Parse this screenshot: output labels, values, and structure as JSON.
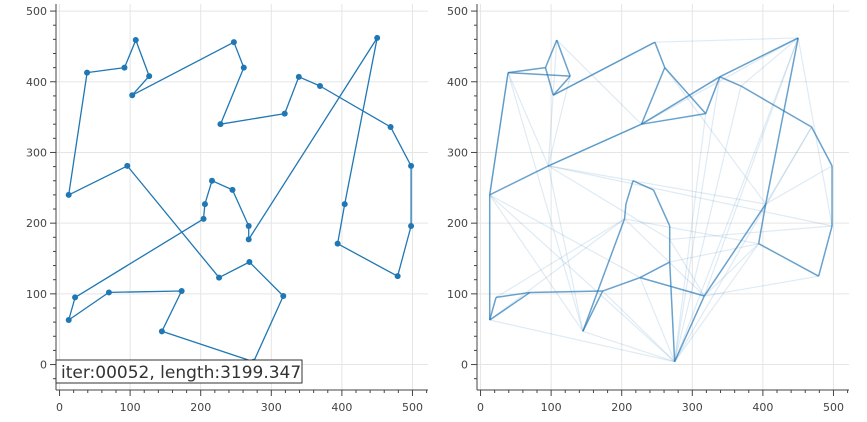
{
  "status": {
    "text": "iter:00052, length:3199.347"
  },
  "colors": {
    "route": "#1f77b4",
    "edge": "#2a7ab8",
    "grid": "#e5e5e5",
    "axis": "#444444"
  },
  "chart_data": [
    {
      "type": "line",
      "panel": "left",
      "title": "",
      "xlabel": "",
      "ylabel": "",
      "xlim": [
        -5,
        522
      ],
      "ylim": [
        -36,
        510
      ],
      "xticks": [
        0,
        100,
        200,
        300,
        400,
        500
      ],
      "yticks": [
        0,
        100,
        200,
        300,
        400,
        500
      ],
      "xtick_labels": [
        "0",
        "100",
        "200",
        "300",
        "400",
        "500"
      ],
      "ytick_labels": [
        "0",
        "100",
        "200",
        "300",
        "400",
        "500"
      ],
      "grid": true,
      "markers": true,
      "route": [
        [
          13,
          240
        ],
        [
          39,
          413
        ],
        [
          92,
          420
        ],
        [
          108,
          459
        ],
        [
          127,
          408
        ],
        [
          103,
          381
        ],
        [
          247,
          456
        ],
        [
          261,
          420
        ],
        [
          228,
          340
        ],
        [
          319,
          355
        ],
        [
          339,
          407
        ],
        [
          369,
          394
        ],
        [
          469,
          336
        ],
        [
          498,
          281
        ],
        [
          498,
          196
        ],
        [
          479,
          125
        ],
        [
          394,
          171
        ],
        [
          404,
          227
        ],
        [
          450,
          462
        ],
        [
          268,
          177
        ],
        [
          268,
          196
        ],
        [
          245,
          247
        ],
        [
          216,
          260
        ],
        [
          206,
          227
        ],
        [
          204,
          206
        ],
        [
          22,
          95
        ],
        [
          13,
          63
        ],
        [
          70,
          102
        ],
        [
          173,
          104
        ],
        [
          145,
          47
        ],
        [
          275,
          4
        ],
        [
          317,
          97
        ],
        [
          269,
          145
        ],
        [
          226,
          123
        ],
        [
          96,
          281
        ],
        [
          13,
          240
        ]
      ]
    },
    {
      "type": "scatter",
      "panel": "right",
      "title": "",
      "xlabel": "",
      "ylabel": "",
      "xlim": [
        -5,
        522
      ],
      "ylim": [
        -36,
        510
      ],
      "xticks": [
        0,
        100,
        200,
        300,
        400,
        500
      ],
      "yticks": [
        0,
        100,
        200,
        300,
        400,
        500
      ],
      "xtick_labels": [
        "0",
        "100",
        "200",
        "300",
        "400",
        "500"
      ],
      "ytick_labels": [
        "0",
        "100",
        "200",
        "300",
        "400",
        "500"
      ],
      "grid": true,
      "strong_edges": [
        [
          [
            108,
            459
          ],
          [
            127,
            408
          ]
        ],
        [
          [
            108,
            459
          ],
          [
            92,
            420
          ]
        ],
        [
          [
            92,
            420
          ],
          [
            39,
            413
          ]
        ],
        [
          [
            39,
            413
          ],
          [
            127,
            408
          ]
        ],
        [
          [
            92,
            420
          ],
          [
            103,
            381
          ]
        ],
        [
          [
            103,
            381
          ],
          [
            127,
            408
          ]
        ],
        [
          [
            13,
            240
          ],
          [
            13,
            63
          ]
        ],
        [
          [
            13,
            63
          ],
          [
            22,
            95
          ]
        ],
        [
          [
            22,
            95
          ],
          [
            70,
            102
          ]
        ],
        [
          [
            70,
            102
          ],
          [
            13,
            63
          ]
        ],
        [
          [
            13,
            240
          ],
          [
            96,
            281
          ]
        ],
        [
          [
            96,
            281
          ],
          [
            228,
            340
          ]
        ],
        [
          [
            228,
            340
          ],
          [
            339,
            407
          ]
        ],
        [
          [
            339,
            407
          ],
          [
            369,
            394
          ]
        ],
        [
          [
            369,
            394
          ],
          [
            469,
            336
          ]
        ],
        [
          [
            469,
            336
          ],
          [
            498,
            281
          ]
        ],
        [
          [
            498,
            281
          ],
          [
            498,
            196
          ]
        ],
        [
          [
            498,
            196
          ],
          [
            479,
            125
          ]
        ],
        [
          [
            479,
            125
          ],
          [
            394,
            171
          ]
        ],
        [
          [
            394,
            171
          ],
          [
            404,
            227
          ]
        ],
        [
          [
            404,
            227
          ],
          [
            450,
            462
          ]
        ],
        [
          [
            450,
            462
          ],
          [
            339,
            407
          ]
        ],
        [
          [
            319,
            355
          ],
          [
            339,
            407
          ]
        ],
        [
          [
            228,
            340
          ],
          [
            319,
            355
          ]
        ],
        [
          [
            247,
            456
          ],
          [
            261,
            420
          ]
        ],
        [
          [
            261,
            420
          ],
          [
            228,
            340
          ]
        ],
        [
          [
            261,
            420
          ],
          [
            319,
            355
          ]
        ],
        [
          [
            216,
            260
          ],
          [
            245,
            247
          ]
        ],
        [
          [
            245,
            247
          ],
          [
            268,
            196
          ]
        ],
        [
          [
            268,
            196
          ],
          [
            268,
            177
          ]
        ],
        [
          [
            268,
            177
          ],
          [
            268,
            145
          ]
        ],
        [
          [
            268,
            145
          ],
          [
            226,
            123
          ]
        ],
        [
          [
            216,
            260
          ],
          [
            206,
            227
          ]
        ],
        [
          [
            206,
            227
          ],
          [
            204,
            206
          ]
        ],
        [
          [
            226,
            123
          ],
          [
            173,
            104
          ]
        ],
        [
          [
            173,
            104
          ],
          [
            145,
            47
          ]
        ],
        [
          [
            145,
            47
          ],
          [
            204,
            206
          ]
        ],
        [
          [
            70,
            102
          ],
          [
            173,
            104
          ]
        ],
        [
          [
            226,
            123
          ],
          [
            317,
            97
          ]
        ],
        [
          [
            317,
            97
          ],
          [
            404,
            227
          ]
        ],
        [
          [
            317,
            97
          ],
          [
            275,
            4
          ]
        ],
        [
          [
            275,
            4
          ],
          [
            268,
            145
          ]
        ],
        [
          [
            13,
            240
          ],
          [
            39,
            413
          ]
        ],
        [
          [
            103,
            381
          ],
          [
            247,
            456
          ]
        ]
      ],
      "faint_edges": [
        [
          [
            39,
            413
          ],
          [
            13,
            240
          ]
        ],
        [
          [
            39,
            413
          ],
          [
            96,
            281
          ]
        ],
        [
          [
            108,
            459
          ],
          [
            96,
            281
          ]
        ],
        [
          [
            247,
            456
          ],
          [
            450,
            462
          ]
        ],
        [
          [
            247,
            456
          ],
          [
            103,
            381
          ]
        ],
        [
          [
            450,
            462
          ],
          [
            498,
            196
          ]
        ],
        [
          [
            450,
            462
          ],
          [
            275,
            4
          ]
        ],
        [
          [
            450,
            462
          ],
          [
            317,
            97
          ]
        ],
        [
          [
            450,
            462
          ],
          [
            369,
            394
          ]
        ],
        [
          [
            450,
            462
          ],
          [
            228,
            340
          ]
        ],
        [
          [
            369,
            394
          ],
          [
            275,
            4
          ]
        ],
        [
          [
            469,
            336
          ],
          [
            275,
            4
          ]
        ],
        [
          [
            498,
            281
          ],
          [
            404,
            227
          ]
        ],
        [
          [
            96,
            281
          ],
          [
            498,
            196
          ]
        ],
        [
          [
            96,
            281
          ],
          [
            404,
            227
          ]
        ],
        [
          [
            96,
            281
          ],
          [
            268,
            177
          ]
        ],
        [
          [
            96,
            281
          ],
          [
            145,
            47
          ]
        ],
        [
          [
            13,
            240
          ],
          [
            275,
            4
          ]
        ],
        [
          [
            13,
            240
          ],
          [
            145,
            47
          ]
        ],
        [
          [
            13,
            240
          ],
          [
            226,
            123
          ]
        ],
        [
          [
            13,
            63
          ],
          [
            275,
            4
          ]
        ],
        [
          [
            13,
            63
          ],
          [
            204,
            206
          ]
        ],
        [
          [
            22,
            95
          ],
          [
            204,
            206
          ]
        ],
        [
          [
            204,
            206
          ],
          [
            317,
            97
          ]
        ],
        [
          [
            204,
            206
          ],
          [
            394,
            171
          ]
        ],
        [
          [
            268,
            177
          ],
          [
            498,
            196
          ]
        ],
        [
          [
            268,
            177
          ],
          [
            317,
            97
          ]
        ],
        [
          [
            268,
            145
          ],
          [
            394,
            171
          ]
        ],
        [
          [
            319,
            355
          ],
          [
            275,
            4
          ]
        ],
        [
          [
            339,
            407
          ],
          [
            275,
            4
          ]
        ],
        [
          [
            261,
            420
          ],
          [
            404,
            227
          ]
        ],
        [
          [
            228,
            340
          ],
          [
            96,
            281
          ]
        ],
        [
          [
            108,
            459
          ],
          [
            228,
            340
          ]
        ],
        [
          [
            39,
            413
          ],
          [
            145,
            47
          ]
        ],
        [
          [
            127,
            408
          ],
          [
            96,
            281
          ]
        ],
        [
          [
            394,
            171
          ],
          [
            275,
            4
          ]
        ],
        [
          [
            479,
            125
          ],
          [
            317,
            97
          ]
        ],
        [
          [
            317,
            97
          ],
          [
            394,
            171
          ]
        ],
        [
          [
            145,
            47
          ],
          [
            275,
            4
          ]
        ],
        [
          [
            173,
            104
          ],
          [
            275,
            4
          ]
        ],
        [
          [
            226,
            123
          ],
          [
            275,
            4
          ]
        ],
        [
          [
            469,
            336
          ],
          [
            404,
            227
          ]
        ]
      ]
    }
  ]
}
